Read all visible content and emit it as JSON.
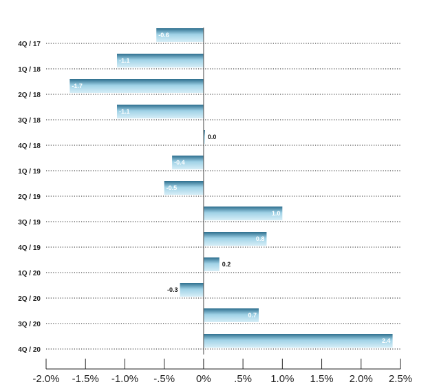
{
  "chart_data": {
    "type": "bar",
    "orientation": "horizontal",
    "categories": [
      "4Q / 17",
      "1Q / 18",
      "2Q / 18",
      "3Q / 18",
      "4Q / 18",
      "1Q / 19",
      "2Q / 19",
      "3Q / 19",
      "4Q / 19",
      "1Q / 20",
      "2Q / 20",
      "3Q / 20",
      "4Q / 20"
    ],
    "values": [
      -0.6,
      -1.1,
      -1.7,
      -1.1,
      0.0,
      -0.4,
      -0.5,
      1.0,
      0.8,
      0.2,
      -0.3,
      0.7,
      2.4
    ],
    "value_labels": [
      "-0.6",
      "-1.1",
      "-1.7",
      "-1.1",
      "0.0",
      "-0.4",
      "-0.5",
      "1.0",
      "0.8",
      "0.2",
      "-0.3",
      "0.7",
      "2.4"
    ],
    "xlim": [
      -2.0,
      2.5
    ],
    "x_ticks": [
      -2.0,
      -1.5,
      -1.0,
      -0.5,
      0,
      0.5,
      1.0,
      1.5,
      2.0,
      2.5
    ],
    "x_tick_labels": [
      "-2.0%",
      "-1.5%",
      "-1.0%",
      "-.5%",
      "0%",
      ".5%",
      "1.0%",
      "1.5%",
      "2.0%",
      "2.5%"
    ],
    "title": "",
    "xlabel": "",
    "ylabel": "",
    "grid": "dotted row guides",
    "legend": "none",
    "colors": {
      "bar_light": "#bfe3f0",
      "bar_dark": "#2d6f8e",
      "zero_line": "#555555",
      "guide": "#222222"
    }
  }
}
